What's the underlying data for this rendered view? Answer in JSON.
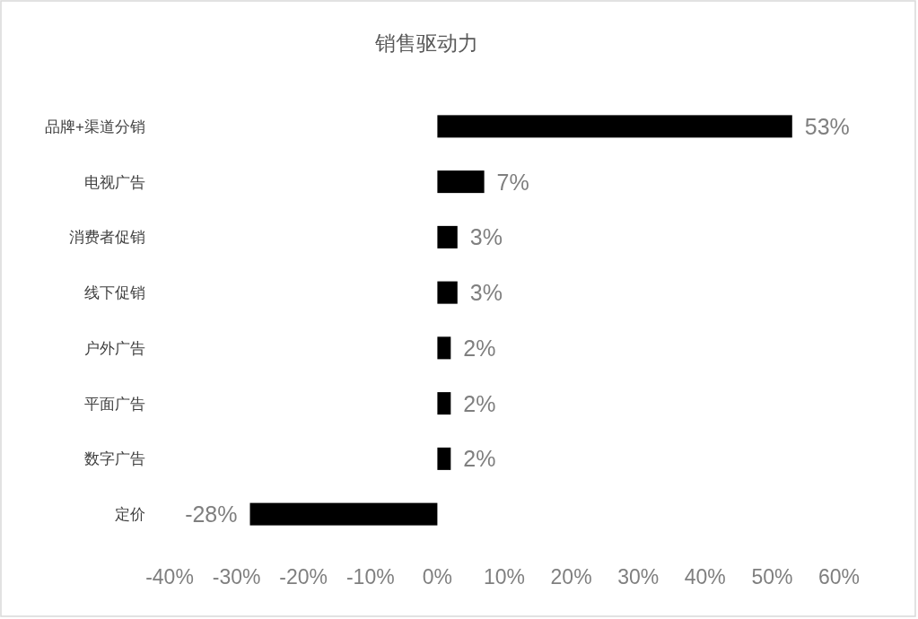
{
  "chart_data": {
    "type": "bar",
    "orientation": "horizontal",
    "title": "销售驱动力",
    "categories": [
      "品牌+渠道分销",
      "电视广告",
      "消费者促销",
      "线下促销",
      "户外广告",
      "平面广告",
      "数字广告",
      "定价"
    ],
    "values": [
      53,
      7,
      3,
      3,
      2,
      2,
      2,
      -28
    ],
    "value_labels": [
      "53%",
      "7%",
      "3%",
      "3%",
      "2%",
      "2%",
      "2%",
      "-28%"
    ],
    "color": "#000000",
    "xlim": [
      -40,
      60
    ],
    "xticks": [
      {
        "value": -40,
        "label": "-40%"
      },
      {
        "value": -30,
        "label": "-30%"
      },
      {
        "value": -20,
        "label": "-20%"
      },
      {
        "value": -10,
        "label": "-10%"
      },
      {
        "value": 0,
        "label": "0%"
      },
      {
        "value": 10,
        "label": "10%"
      },
      {
        "value": 20,
        "label": "20%"
      },
      {
        "value": 30,
        "label": "30%"
      },
      {
        "value": 40,
        "label": "40%"
      },
      {
        "value": 50,
        "label": "50%"
      },
      {
        "value": 60,
        "label": "60%"
      }
    ]
  }
}
